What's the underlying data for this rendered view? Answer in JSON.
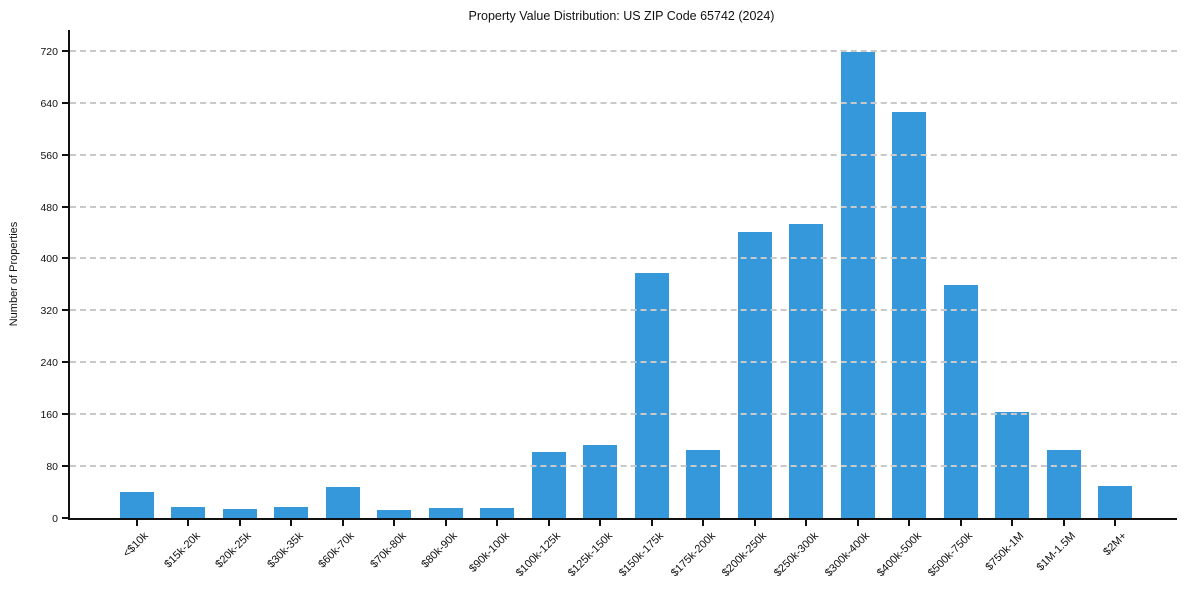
{
  "chart_data": {
    "type": "bar",
    "title": "Property Value Distribution: US ZIP Code 65742 (2024)",
    "xlabel": "",
    "ylabel": "Number of Properties",
    "categories": [
      "<$10k",
      "$15k-20k",
      "$20k-25k",
      "$30k-35k",
      "$60k-70k",
      "$70k-80k",
      "$80k-90k",
      "$90k-100k",
      "$100k-125k",
      "$125k-150k",
      "$150k-175k",
      "$175k-200k",
      "$200k-250k",
      "$250k-300k",
      "$300k-400k",
      "$400k-500k",
      "$500k-750k",
      "$750k-1M",
      "$1M-1.5M",
      "$2M+"
    ],
    "values": [
      40,
      17,
      14,
      17,
      48,
      13,
      16,
      16,
      102,
      113,
      378,
      105,
      440,
      453,
      718,
      625,
      359,
      163,
      105,
      50
    ],
    "yticks": [
      0,
      80,
      160,
      240,
      320,
      400,
      480,
      560,
      640,
      720
    ],
    "ylim": [
      0,
      752
    ],
    "grid": "horizontal-dashed",
    "legend": "none",
    "bar_color": "#3498db",
    "axis_color": "#111111",
    "grid_color": "#c9c9c9",
    "background_color": "#ffffff"
  }
}
